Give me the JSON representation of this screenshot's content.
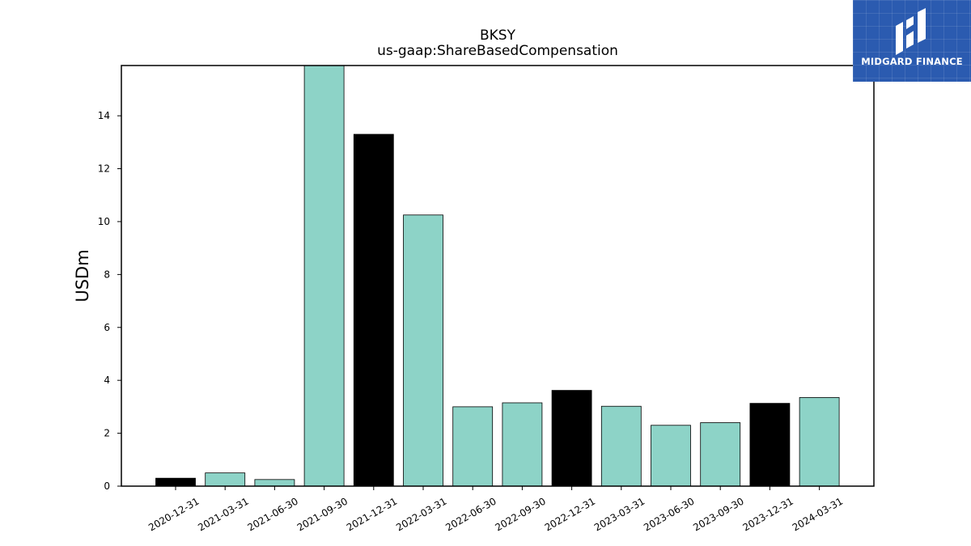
{
  "brand": {
    "name": "MIDGARD FINANCE"
  },
  "chart_data": {
    "type": "bar",
    "title": "BKSY",
    "subtitle": "us-gaap:ShareBasedCompensation",
    "xlabel": "",
    "ylabel": "USDm",
    "ylim": [
      0,
      15.9
    ],
    "yticks": [
      0,
      2,
      4,
      6,
      8,
      10,
      12,
      14
    ],
    "categories": [
      "2020-12-31",
      "2021-03-31",
      "2021-06-30",
      "2021-09-30",
      "2021-12-31",
      "2022-03-31",
      "2022-06-30",
      "2022-09-30",
      "2022-12-31",
      "2023-03-31",
      "2023-06-30",
      "2023-09-30",
      "2023-12-31",
      "2024-03-31"
    ],
    "values": [
      0.3,
      0.5,
      0.25,
      15.9,
      13.3,
      10.25,
      3.0,
      3.15,
      3.62,
      3.02,
      2.3,
      2.4,
      3.13,
      3.35
    ],
    "bar_colors": [
      "#000000",
      "#8dd3c7",
      "#8dd3c7",
      "#8dd3c7",
      "#000000",
      "#8dd3c7",
      "#8dd3c7",
      "#8dd3c7",
      "#000000",
      "#8dd3c7",
      "#8dd3c7",
      "#8dd3c7",
      "#000000",
      "#8dd3c7"
    ],
    "grid": false,
    "legend": "none"
  }
}
